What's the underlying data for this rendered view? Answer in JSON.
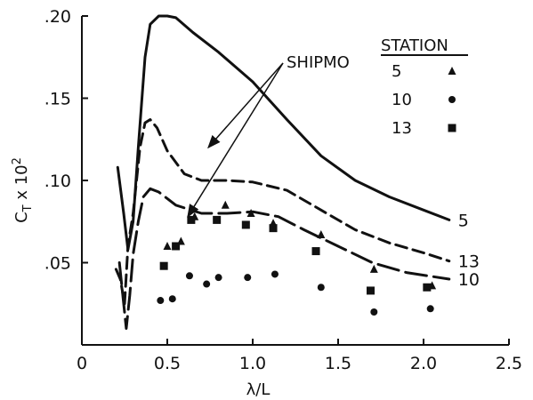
{
  "chart_data": {
    "type": "line",
    "xlabel": "λ/L",
    "ylabel": "C",
    "ylabel_sub": "T",
    "ylabel_suffix": " x 10",
    "ylabel_sup": "2",
    "xlim": [
      0,
      2.5
    ],
    "ylim": [
      0,
      0.2
    ],
    "xticks": [
      {
        "value": 0,
        "label": "0"
      },
      {
        "value": 0.5,
        "label": "0.5"
      },
      {
        "value": 1.0,
        "label": "1.0"
      },
      {
        "value": 1.5,
        "label": "1.5"
      },
      {
        "value": 2.0,
        "label": "2.0"
      },
      {
        "value": 2.5,
        "label": "2.5"
      }
    ],
    "yticks": [
      {
        "value": 0.05,
        "label": ".05"
      },
      {
        "value": 0.1,
        "label": ".10"
      },
      {
        "value": 0.15,
        "label": ".15"
      },
      {
        "value": 0.2,
        "label": ".20"
      }
    ],
    "grid": false,
    "legend_title": "STATION",
    "legend_placement": "top-right",
    "annotation": "SHIPMO",
    "series": [
      {
        "name": "5",
        "kind": "curve",
        "dash": "solid",
        "points": [
          [
            0.21,
            0.108
          ],
          [
            0.245,
            0.08
          ],
          [
            0.27,
            0.058
          ],
          [
            0.3,
            0.075
          ],
          [
            0.33,
            0.12
          ],
          [
            0.37,
            0.175
          ],
          [
            0.4,
            0.195
          ],
          [
            0.45,
            0.2
          ],
          [
            0.5,
            0.2
          ],
          [
            0.55,
            0.199
          ],
          [
            0.65,
            0.19
          ],
          [
            0.8,
            0.178
          ],
          [
            1.0,
            0.16
          ],
          [
            1.2,
            0.137
          ],
          [
            1.4,
            0.115
          ],
          [
            1.6,
            0.1
          ],
          [
            1.8,
            0.09
          ],
          [
            2.0,
            0.082
          ],
          [
            2.15,
            0.076
          ]
        ]
      },
      {
        "name": "13",
        "kind": "curve",
        "dash": "dashed",
        "points": [
          [
            0.2,
            0.046
          ],
          [
            0.225,
            0.04
          ],
          [
            0.25,
            0.025
          ],
          [
            0.27,
            0.06
          ],
          [
            0.3,
            0.08
          ],
          [
            0.34,
            0.12
          ],
          [
            0.37,
            0.135
          ],
          [
            0.4,
            0.137
          ],
          [
            0.44,
            0.132
          ],
          [
            0.5,
            0.118
          ],
          [
            0.6,
            0.104
          ],
          [
            0.7,
            0.1
          ],
          [
            0.85,
            0.1
          ],
          [
            1.0,
            0.099
          ],
          [
            1.2,
            0.094
          ],
          [
            1.4,
            0.082
          ],
          [
            1.6,
            0.07
          ],
          [
            1.8,
            0.062
          ],
          [
            2.0,
            0.056
          ],
          [
            2.15,
            0.051
          ]
        ]
      },
      {
        "name": "10",
        "kind": "curve",
        "dash": "long-dash",
        "points": [
          [
            0.22,
            0.05
          ],
          [
            0.245,
            0.025
          ],
          [
            0.26,
            0.01
          ],
          [
            0.28,
            0.03
          ],
          [
            0.3,
            0.055
          ],
          [
            0.33,
            0.075
          ],
          [
            0.36,
            0.09
          ],
          [
            0.4,
            0.095
          ],
          [
            0.45,
            0.093
          ],
          [
            0.55,
            0.085
          ],
          [
            0.7,
            0.08
          ],
          [
            0.85,
            0.08
          ],
          [
            1.0,
            0.081
          ],
          [
            1.15,
            0.078
          ],
          [
            1.3,
            0.07
          ],
          [
            1.5,
            0.06
          ],
          [
            1.7,
            0.05
          ],
          [
            1.9,
            0.044
          ],
          [
            2.15,
            0.04
          ]
        ]
      },
      {
        "name": "5",
        "kind": "points",
        "marker": "triangle",
        "points": [
          [
            0.5,
            0.06
          ],
          [
            0.58,
            0.063
          ],
          [
            0.66,
            0.078
          ],
          [
            0.84,
            0.085
          ],
          [
            0.99,
            0.08
          ],
          [
            1.12,
            0.074
          ],
          [
            1.4,
            0.067
          ],
          [
            1.71,
            0.046
          ],
          [
            2.05,
            0.036
          ]
        ]
      },
      {
        "name": "10",
        "kind": "points",
        "marker": "circle",
        "points": [
          [
            0.46,
            0.027
          ],
          [
            0.53,
            0.028
          ],
          [
            0.63,
            0.042
          ],
          [
            0.73,
            0.037
          ],
          [
            0.8,
            0.041
          ],
          [
            0.97,
            0.041
          ],
          [
            1.13,
            0.043
          ],
          [
            1.4,
            0.035
          ],
          [
            1.71,
            0.02
          ],
          [
            2.04,
            0.022
          ]
        ]
      },
      {
        "name": "13",
        "kind": "points",
        "marker": "square",
        "points": [
          [
            0.48,
            0.048
          ],
          [
            0.55,
            0.06
          ],
          [
            0.64,
            0.076
          ],
          [
            0.79,
            0.076
          ],
          [
            0.96,
            0.073
          ],
          [
            1.12,
            0.071
          ],
          [
            1.37,
            0.057
          ],
          [
            1.69,
            0.033
          ],
          [
            2.02,
            0.035
          ]
        ]
      }
    ]
  }
}
